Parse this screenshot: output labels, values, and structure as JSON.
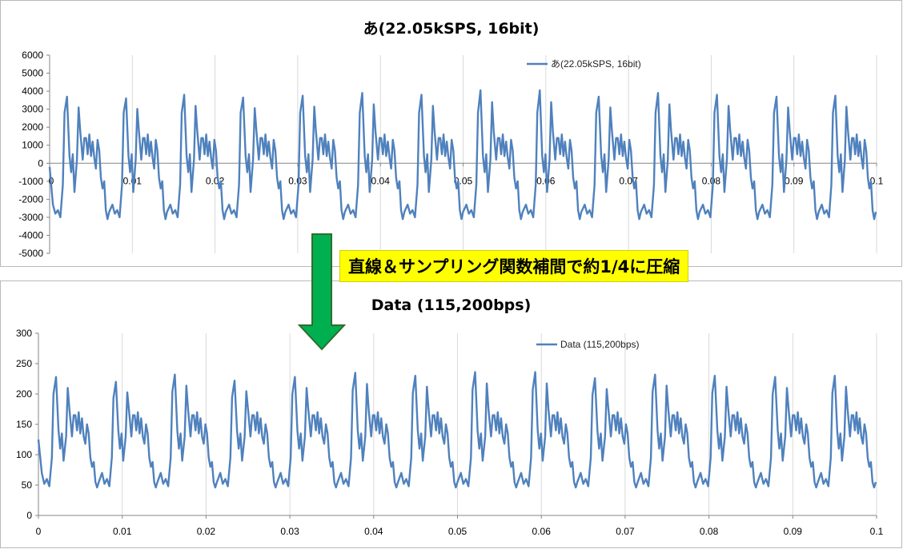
{
  "callout": {
    "text": "直線＆サンプリング関数補間で約1/4に圧縮",
    "bg": "#ffff00"
  },
  "arrow": {
    "icon": "down-arrow-icon",
    "color": "#00b050"
  },
  "chart_data": [
    {
      "type": "line",
      "title": "あ(22.05kSPS, 16bit)",
      "xlabel": "",
      "ylabel": "",
      "xlim": [
        0,
        0.1
      ],
      "ylim": [
        -5000,
        6000
      ],
      "x_ticks": [
        "0",
        "0.01",
        "0.02",
        "0.03",
        "0.04",
        "0.05",
        "0.06",
        "0.07",
        "0.08",
        "0.09",
        "0.1"
      ],
      "y_ticks": [
        "6000",
        "5000",
        "4000",
        "3000",
        "2000",
        "1000",
        "0",
        "-1000",
        "-2000",
        "-3000",
        "-4000",
        "-5000"
      ],
      "grid": "vertical",
      "legend": "top-right",
      "color": "#4f81bd",
      "series": [
        {
          "name": "あ(22.05kSPS, 16bit)"
        }
      ],
      "periods": [
        0.0072,
        0.0142,
        0.0213,
        0.0285,
        0.0357,
        0.0429,
        0.05,
        0.0572,
        0.0643,
        0.0715,
        0.0786,
        0.0858,
        0.093,
        0.0999
      ],
      "peaks": [
        3700,
        3600,
        3800,
        3650,
        3750,
        3900,
        3800,
        4050,
        4050,
        3700,
        3900,
        3800,
        3700,
        3750
      ],
      "waveform": [
        [
          0.0,
          -200
        ],
        [
          0.0004,
          -2300
        ],
        [
          0.0007,
          -2800
        ],
        [
          0.001,
          -2600
        ],
        [
          0.0013,
          -3000
        ],
        [
          0.0016,
          -1200
        ],
        [
          0.0018,
          2800
        ],
        [
          0.0021,
          3700
        ],
        [
          0.0024,
          400
        ],
        [
          0.0026,
          -500
        ],
        [
          0.0028,
          500
        ],
        [
          0.003,
          -1600
        ],
        [
          0.0033,
          200
        ],
        [
          0.0035,
          3100
        ],
        [
          0.0037,
          1800
        ],
        [
          0.004,
          200
        ],
        [
          0.0042,
          1400
        ],
        [
          0.0044,
          1400
        ],
        [
          0.0046,
          500
        ],
        [
          0.0048,
          1600
        ],
        [
          0.005,
          400
        ],
        [
          0.0052,
          1200
        ],
        [
          0.0054,
          300
        ],
        [
          0.0056,
          -300
        ],
        [
          0.0058,
          1300
        ],
        [
          0.006,
          700
        ],
        [
          0.0062,
          -800
        ],
        [
          0.0064,
          -1400
        ],
        [
          0.0066,
          -1000
        ],
        [
          0.0068,
          -2600
        ],
        [
          0.007,
          -3100
        ],
        [
          0.0072,
          -2700
        ]
      ]
    },
    {
      "type": "line",
      "title": "Data (115,200bps)",
      "xlabel": "",
      "ylabel": "",
      "xlim": [
        0,
        0.1
      ],
      "ylim": [
        0,
        300
      ],
      "x_ticks": [
        "0",
        "0.01",
        "0.02",
        "0.03",
        "0.04",
        "0.05",
        "0.06",
        "0.07",
        "0.08",
        "0.09",
        "0.1"
      ],
      "y_ticks": [
        "300",
        "250",
        "200",
        "150",
        "100",
        "50",
        "0"
      ],
      "grid": "vertical",
      "legend": "top-right",
      "color": "#4f81bd",
      "series": [
        {
          "name": "Data (115,200bps)"
        }
      ],
      "periods": [
        0.0072,
        0.0142,
        0.0213,
        0.0285,
        0.0357,
        0.0429,
        0.05,
        0.0572,
        0.0643,
        0.0715,
        0.0786,
        0.0858,
        0.093,
        0.0999
      ],
      "peaks": [
        228,
        220,
        232,
        222,
        228,
        235,
        230,
        236,
        236,
        226,
        232,
        230,
        228,
        230
      ],
      "waveform": [
        [
          0.0,
          125
        ],
        [
          0.0004,
          70
        ],
        [
          0.0007,
          52
        ],
        [
          0.001,
          60
        ],
        [
          0.0013,
          48
        ],
        [
          0.0016,
          95
        ],
        [
          0.0018,
          200
        ],
        [
          0.0021,
          228
        ],
        [
          0.0024,
          140
        ],
        [
          0.0026,
          110
        ],
        [
          0.0028,
          135
        ],
        [
          0.003,
          90
        ],
        [
          0.0033,
          130
        ],
        [
          0.0035,
          210
        ],
        [
          0.0037,
          175
        ],
        [
          0.004,
          130
        ],
        [
          0.0042,
          165
        ],
        [
          0.0044,
          165
        ],
        [
          0.0046,
          140
        ],
        [
          0.0048,
          170
        ],
        [
          0.005,
          135
        ],
        [
          0.0052,
          160
        ],
        [
          0.0054,
          130
        ],
        [
          0.0056,
          118
        ],
        [
          0.0058,
          150
        ],
        [
          0.006,
          135
        ],
        [
          0.0062,
          95
        ],
        [
          0.0064,
          80
        ],
        [
          0.0066,
          88
        ],
        [
          0.0068,
          55
        ],
        [
          0.007,
          46
        ],
        [
          0.0072,
          55
        ]
      ]
    }
  ]
}
